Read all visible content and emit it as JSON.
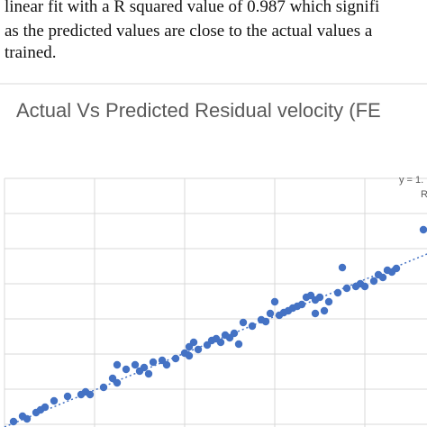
{
  "paper_text": [
    "linear fit with a R squared value of 0.987 which signifi",
    "as the predicted values are close to the actual values a",
    "trained."
  ],
  "chart_data": {
    "type": "scatter",
    "title": "Actual Vs Predicted Residual velocity (FE",
    "annotation": [
      "y = 1.",
      "R"
    ],
    "x": [
      10,
      20,
      35,
      40,
      45,
      55,
      70,
      85,
      90,
      95,
      110,
      120,
      125,
      135,
      145,
      150,
      155,
      160,
      165,
      175,
      180,
      190,
      200,
      205,
      210,
      215,
      225,
      230,
      235,
      240,
      245,
      250,
      255,
      260,
      265,
      275,
      285,
      290,
      295,
      300,
      305,
      310,
      315,
      320,
      325,
      330,
      335,
      340,
      345,
      350,
      355,
      360,
      370,
      375,
      380,
      390,
      395,
      400,
      410,
      415,
      420,
      425,
      430,
      435,
      465,
      25,
      125,
      205,
      345
    ],
    "values": [
      3,
      9,
      13,
      16,
      19,
      26,
      31,
      33,
      36,
      33,
      41,
      51,
      46,
      61,
      66,
      59,
      63,
      56,
      69,
      71,
      66,
      73,
      79,
      86,
      91,
      83,
      88,
      93,
      95,
      91,
      99,
      96,
      101,
      89,
      113,
      109,
      116,
      114,
      123,
      136,
      121,
      124,
      126,
      129,
      131,
      133,
      141,
      143,
      138,
      141,
      126,
      136,
      146,
      174,
      151,
      153,
      156,
      153,
      159,
      166,
      163,
      171,
      169,
      173,
      216,
      6,
      66,
      76,
      123
    ],
    "color": "#4472c4",
    "xlim": [
      0,
      469
    ],
    "ylim": [
      -3,
      273
    ],
    "xticks": [
      0,
      100,
      200,
      300,
      400
    ],
    "yticks": [
      0,
      39,
      78,
      117,
      156,
      195,
      234,
      273
    ],
    "grid": true
  }
}
